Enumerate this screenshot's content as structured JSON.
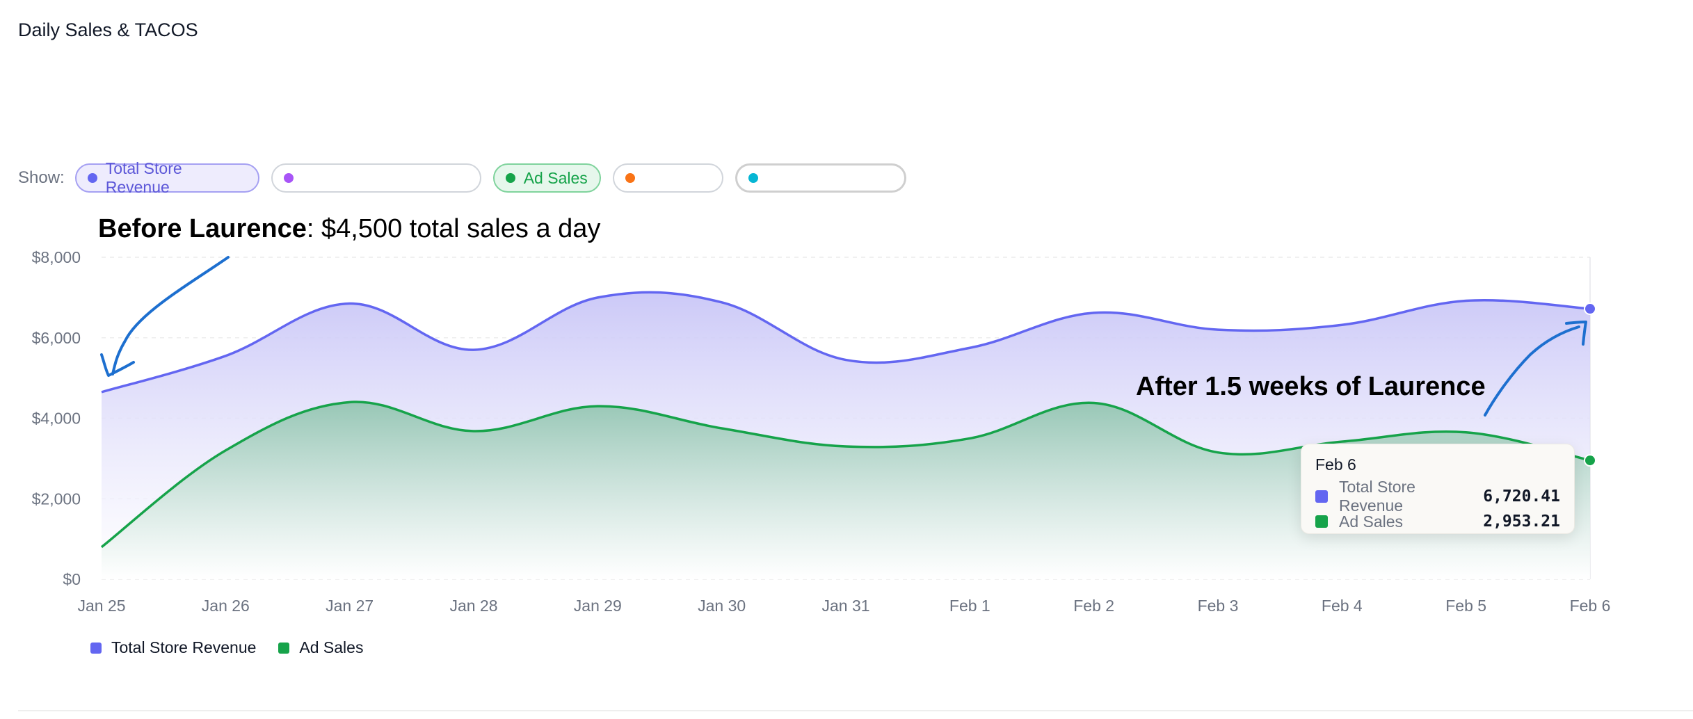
{
  "card": {
    "title": "Daily Sales & TACOS"
  },
  "filters": {
    "show_label": "Show:",
    "pills": [
      {
        "label": "Total Store Revenue",
        "color": "#6366f1",
        "active": true
      },
      {
        "label": "",
        "color": "#a855f7",
        "active": false
      },
      {
        "label": "Ad Sales",
        "color": "#16a34a",
        "active": true
      },
      {
        "label": "",
        "color": "#f97316",
        "active": false
      },
      {
        "label": "",
        "color": "#06b6d4",
        "active": false
      }
    ]
  },
  "annotations": {
    "before_bold": "Before Laurence",
    "before_rest": ": $4,500 total sales a day",
    "after": "After 1.5 weeks of Laurence",
    "arrow_color": "#1d6fcf"
  },
  "tooltip": {
    "date": "Feb 6",
    "rows": [
      {
        "name": "Total Store Revenue",
        "value": "6,720.41",
        "color": "#6366f1"
      },
      {
        "name": "Ad Sales",
        "value": "2,953.21",
        "color": "#16a34a"
      }
    ]
  },
  "legend": {
    "items": [
      {
        "label": "Total Store Revenue",
        "color": "#6366f1"
      },
      {
        "label": "Ad Sales",
        "color": "#16a34a"
      }
    ]
  },
  "chart_data": {
    "type": "area",
    "title": "Daily Sales & TACOS",
    "xlabel": "",
    "ylabel": "",
    "categories": [
      "Jan 25",
      "Jan 26",
      "Jan 27",
      "Jan 28",
      "Jan 29",
      "Jan 30",
      "Jan 31",
      "Feb 1",
      "Feb 2",
      "Feb 3",
      "Feb 4",
      "Feb 5",
      "Feb 6"
    ],
    "y_ticks": [
      "$0",
      "$2,000",
      "$4,000",
      "$6,000",
      "$8,000"
    ],
    "ylim": [
      0,
      8000
    ],
    "grid": true,
    "legend_position": "bottom-left",
    "series": [
      {
        "name": "Total Store Revenue",
        "color": "#6366f1",
        "values": [
          4650,
          5550,
          6850,
          5700,
          7000,
          6880,
          5450,
          5750,
          6620,
          6200,
          6320,
          6920,
          6720.41
        ]
      },
      {
        "name": "Ad Sales",
        "color": "#16a34a",
        "values": [
          800,
          3200,
          4400,
          3680,
          4300,
          3750,
          3300,
          3500,
          4380,
          3150,
          3420,
          3650,
          2953.21
        ]
      }
    ]
  }
}
